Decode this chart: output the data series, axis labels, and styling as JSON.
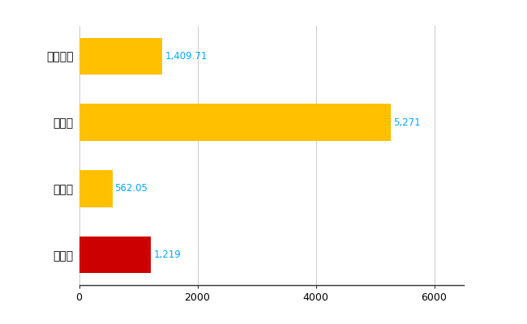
{
  "categories": [
    "桜井市",
    "県平均",
    "県最大",
    "全国平均"
  ],
  "values": [
    1219,
    562.05,
    5271,
    1409.71
  ],
  "bar_colors": [
    "#CC0000",
    "#FFC000",
    "#FFC000",
    "#FFC000"
  ],
  "bar_labels": [
    "1,219",
    "562.05",
    "5,271",
    "1,409.71"
  ],
  "xlim": [
    0,
    6500
  ],
  "xticks": [
    0,
    2000,
    4000,
    6000
  ],
  "background_color": "#FFFFFF",
  "grid_color": "#BBBBBB",
  "label_color": "#00AAFF",
  "bar_height": 0.55,
  "figsize": [
    6.5,
    4.0
  ],
  "dpi": 100
}
